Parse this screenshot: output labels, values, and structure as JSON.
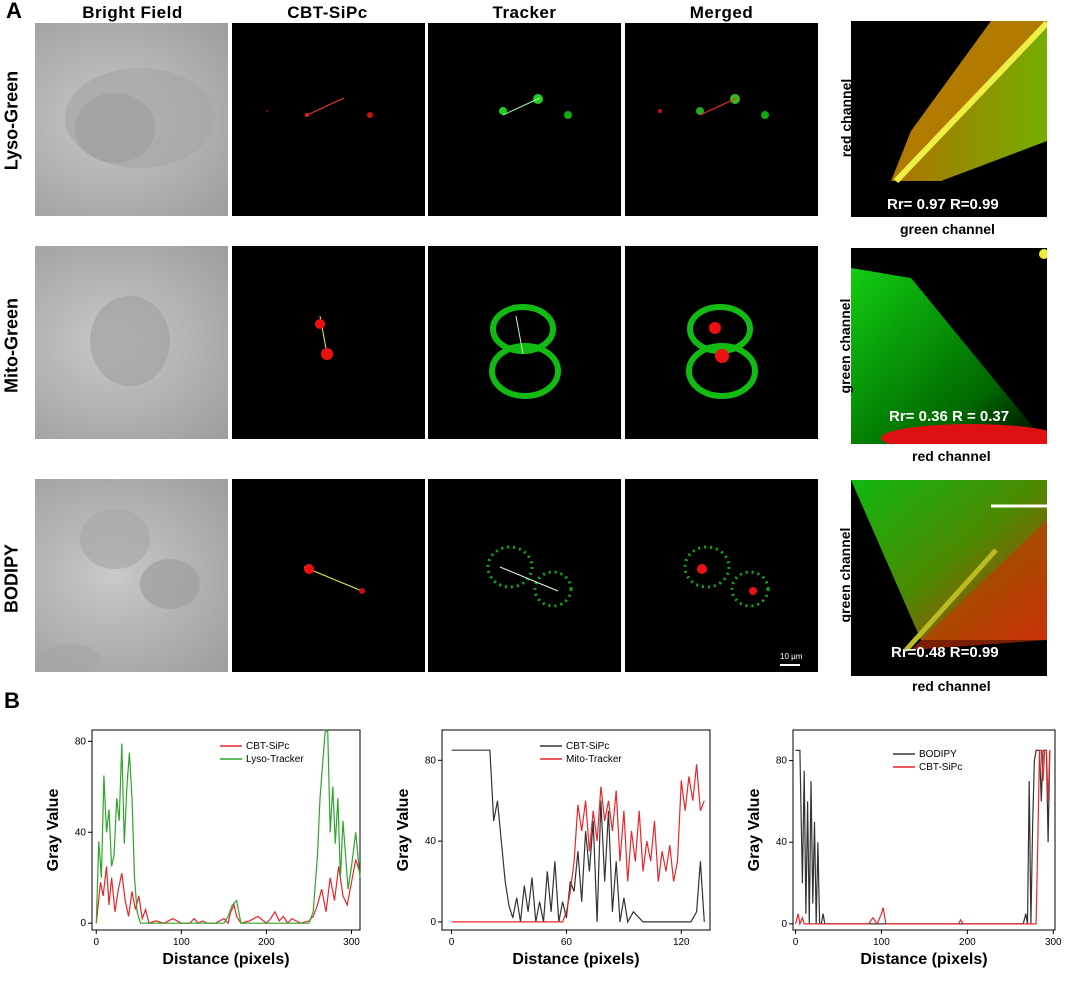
{
  "panel_a_label": "A",
  "panel_b_label": "B",
  "column_headers": [
    "Bright  Field",
    "CBT-SiPc",
    "Tracker",
    "Merged"
  ],
  "row_labels": [
    "Lyso-Green",
    "Mito-Green",
    "BODIPY"
  ],
  "scatter": [
    {
      "coef": "Rr= 0.97  R=0.99",
      "y_label": "red channel",
      "x_label": "green channel"
    },
    {
      "coef": "Rr= 0.36  R = 0.37",
      "y_label": "green channel",
      "x_label": "red channel"
    },
    {
      "coef": "Rr=0.48  R=0.99",
      "y_label": "green channel",
      "x_label": "red channel"
    }
  ],
  "scale_bar_label": "10 μm",
  "chart_data": [
    {
      "type": "line",
      "xlabel": "Distance (pixels)",
      "ylabel": "Gray Value",
      "xlim": [
        -5,
        310
      ],
      "ylim": [
        -3,
        85
      ],
      "xticks": [
        0,
        100,
        200,
        300
      ],
      "yticks": [
        0,
        40,
        80
      ],
      "ytick_labels": [
        "0",
        "40",
        "80"
      ],
      "series": [
        {
          "name": "CBT-SiPc",
          "color": "#e8262a",
          "x": [
            0,
            5,
            8,
            12,
            15,
            18,
            22,
            26,
            30,
            34,
            38,
            42,
            46,
            50,
            54,
            58,
            62,
            70,
            80,
            90,
            100,
            110,
            115,
            120,
            125,
            130,
            140,
            150,
            155,
            158,
            162,
            165,
            170,
            180,
            190,
            200,
            205,
            210,
            215,
            220,
            225,
            230,
            240,
            250,
            255,
            260,
            265,
            270,
            275,
            280,
            285,
            290,
            295,
            300,
            305,
            310
          ],
          "y": [
            0,
            18,
            12,
            25,
            8,
            20,
            5,
            15,
            22,
            10,
            3,
            14,
            6,
            12,
            2,
            6,
            0,
            1,
            0,
            2,
            0,
            0,
            2,
            0,
            1,
            0,
            0,
            2,
            0,
            5,
            8,
            3,
            0,
            1,
            3,
            0,
            2,
            5,
            1,
            3,
            0,
            2,
            0,
            1,
            3,
            8,
            15,
            5,
            20,
            10,
            25,
            12,
            8,
            18,
            28,
            22
          ]
        },
        {
          "name": "Lyso-Tracker",
          "color": "#2fa52a",
          "x": [
            0,
            3,
            6,
            9,
            12,
            15,
            18,
            21,
            24,
            27,
            30,
            33,
            36,
            39,
            42,
            45,
            48,
            52,
            56,
            60,
            80,
            100,
            120,
            140,
            150,
            155,
            160,
            165,
            170,
            180,
            200,
            220,
            240,
            250,
            255,
            260,
            263,
            266,
            269,
            272,
            275,
            278,
            281,
            284,
            287,
            290,
            293,
            296,
            300,
            305,
            310
          ],
          "y": [
            0,
            36,
            20,
            65,
            40,
            50,
            25,
            30,
            55,
            45,
            79,
            35,
            60,
            75,
            55,
            20,
            5,
            0,
            0,
            0,
            0,
            0,
            0,
            0,
            0,
            3,
            8,
            10,
            0,
            0,
            0,
            0,
            0,
            0,
            5,
            30,
            55,
            70,
            84,
            85,
            40,
            60,
            35,
            55,
            20,
            45,
            30,
            15,
            25,
            40,
            20
          ]
        }
      ]
    },
    {
      "type": "line",
      "xlabel": "Distance (pixels)",
      "ylabel": "Gray Value",
      "xlim": [
        -5,
        135
      ],
      "ylim": [
        -4,
        95
      ],
      "xticks": [
        0,
        60,
        120
      ],
      "yticks": [
        0,
        40,
        80
      ],
      "series": [
        {
          "name": "CBT-SiPc",
          "color": "#333333",
          "x": [
            0,
            5,
            10,
            15,
            18,
            20,
            22,
            24,
            26,
            28,
            30,
            32,
            34,
            36,
            38,
            40,
            42,
            44,
            46,
            48,
            50,
            52,
            54,
            56,
            58,
            60,
            62,
            64,
            66,
            68,
            70,
            72,
            74,
            76,
            78,
            80,
            82,
            84,
            86,
            88,
            90,
            92,
            95,
            100,
            105,
            110,
            115,
            120,
            125,
            128,
            130,
            132
          ],
          "y": [
            85,
            85,
            85,
            85,
            85,
            85,
            50,
            60,
            40,
            20,
            8,
            2,
            12,
            0,
            18,
            5,
            22,
            0,
            10,
            0,
            25,
            5,
            30,
            0,
            10,
            2,
            20,
            15,
            35,
            10,
            45,
            25,
            50,
            0,
            60,
            20,
            55,
            5,
            30,
            0,
            12,
            0,
            5,
            0,
            0,
            0,
            0,
            0,
            0,
            5,
            30,
            0
          ]
        },
        {
          "name": "Mito-Tracker",
          "color": "#e8262a",
          "x": [
            0,
            20,
            40,
            55,
            58,
            60,
            62,
            64,
            66,
            68,
            70,
            72,
            74,
            76,
            78,
            80,
            82,
            84,
            86,
            88,
            90,
            92,
            94,
            96,
            98,
            100,
            102,
            104,
            106,
            108,
            110,
            112,
            114,
            116,
            118,
            120,
            122,
            124,
            126,
            128,
            130,
            132
          ],
          "y": [
            0,
            0,
            0,
            0,
            0,
            5,
            15,
            30,
            58,
            45,
            60,
            35,
            55,
            40,
            67,
            50,
            60,
            45,
            65,
            30,
            55,
            20,
            45,
            30,
            55,
            25,
            40,
            30,
            50,
            20,
            35,
            25,
            38,
            20,
            30,
            70,
            55,
            72,
            60,
            78,
            55,
            60
          ]
        }
      ]
    },
    {
      "type": "line",
      "xlabel": "Distance (pixels)",
      "ylabel": "Gray Value",
      "xlim": [
        -3,
        302
      ],
      "ylim": [
        -3,
        95
      ],
      "xticks": [
        0,
        100,
        200,
        300
      ],
      "yticks": [
        0,
        40,
        80
      ],
      "series": [
        {
          "name": "BODIPY",
          "color": "#333333",
          "x": [
            0,
            3,
            5,
            8,
            10,
            12,
            14,
            16,
            18,
            20,
            22,
            24,
            26,
            28,
            30,
            32,
            34,
            40,
            60,
            100,
            200,
            260,
            265,
            268,
            270,
            272,
            274,
            276,
            278,
            280,
            282,
            284,
            286,
            288,
            290,
            292,
            294,
            296
          ],
          "y": [
            85,
            85,
            85,
            20,
            75,
            5,
            60,
            0,
            70,
            10,
            50,
            0,
            40,
            0,
            0,
            5,
            0,
            0,
            0,
            0,
            0,
            0,
            0,
            5,
            0,
            70,
            0,
            50,
            80,
            85,
            85,
            85,
            60,
            85,
            85,
            85,
            40,
            85
          ]
        },
        {
          "name": "CBT-SiPc",
          "color": "#e8262a",
          "x": [
            0,
            3,
            5,
            8,
            10,
            14,
            20,
            40,
            60,
            85,
            90,
            95,
            100,
            102,
            105,
            110,
            150,
            190,
            192,
            195,
            200,
            260,
            270,
            275,
            278,
            280,
            282,
            284,
            286,
            288,
            290,
            292,
            294,
            296
          ],
          "y": [
            0,
            5,
            0,
            3,
            0,
            0,
            0,
            0,
            0,
            0,
            3,
            0,
            5,
            8,
            0,
            0,
            0,
            0,
            2,
            0,
            0,
            0,
            0,
            0,
            0,
            0,
            40,
            85,
            85,
            70,
            85,
            85,
            60,
            85
          ]
        }
      ]
    }
  ]
}
